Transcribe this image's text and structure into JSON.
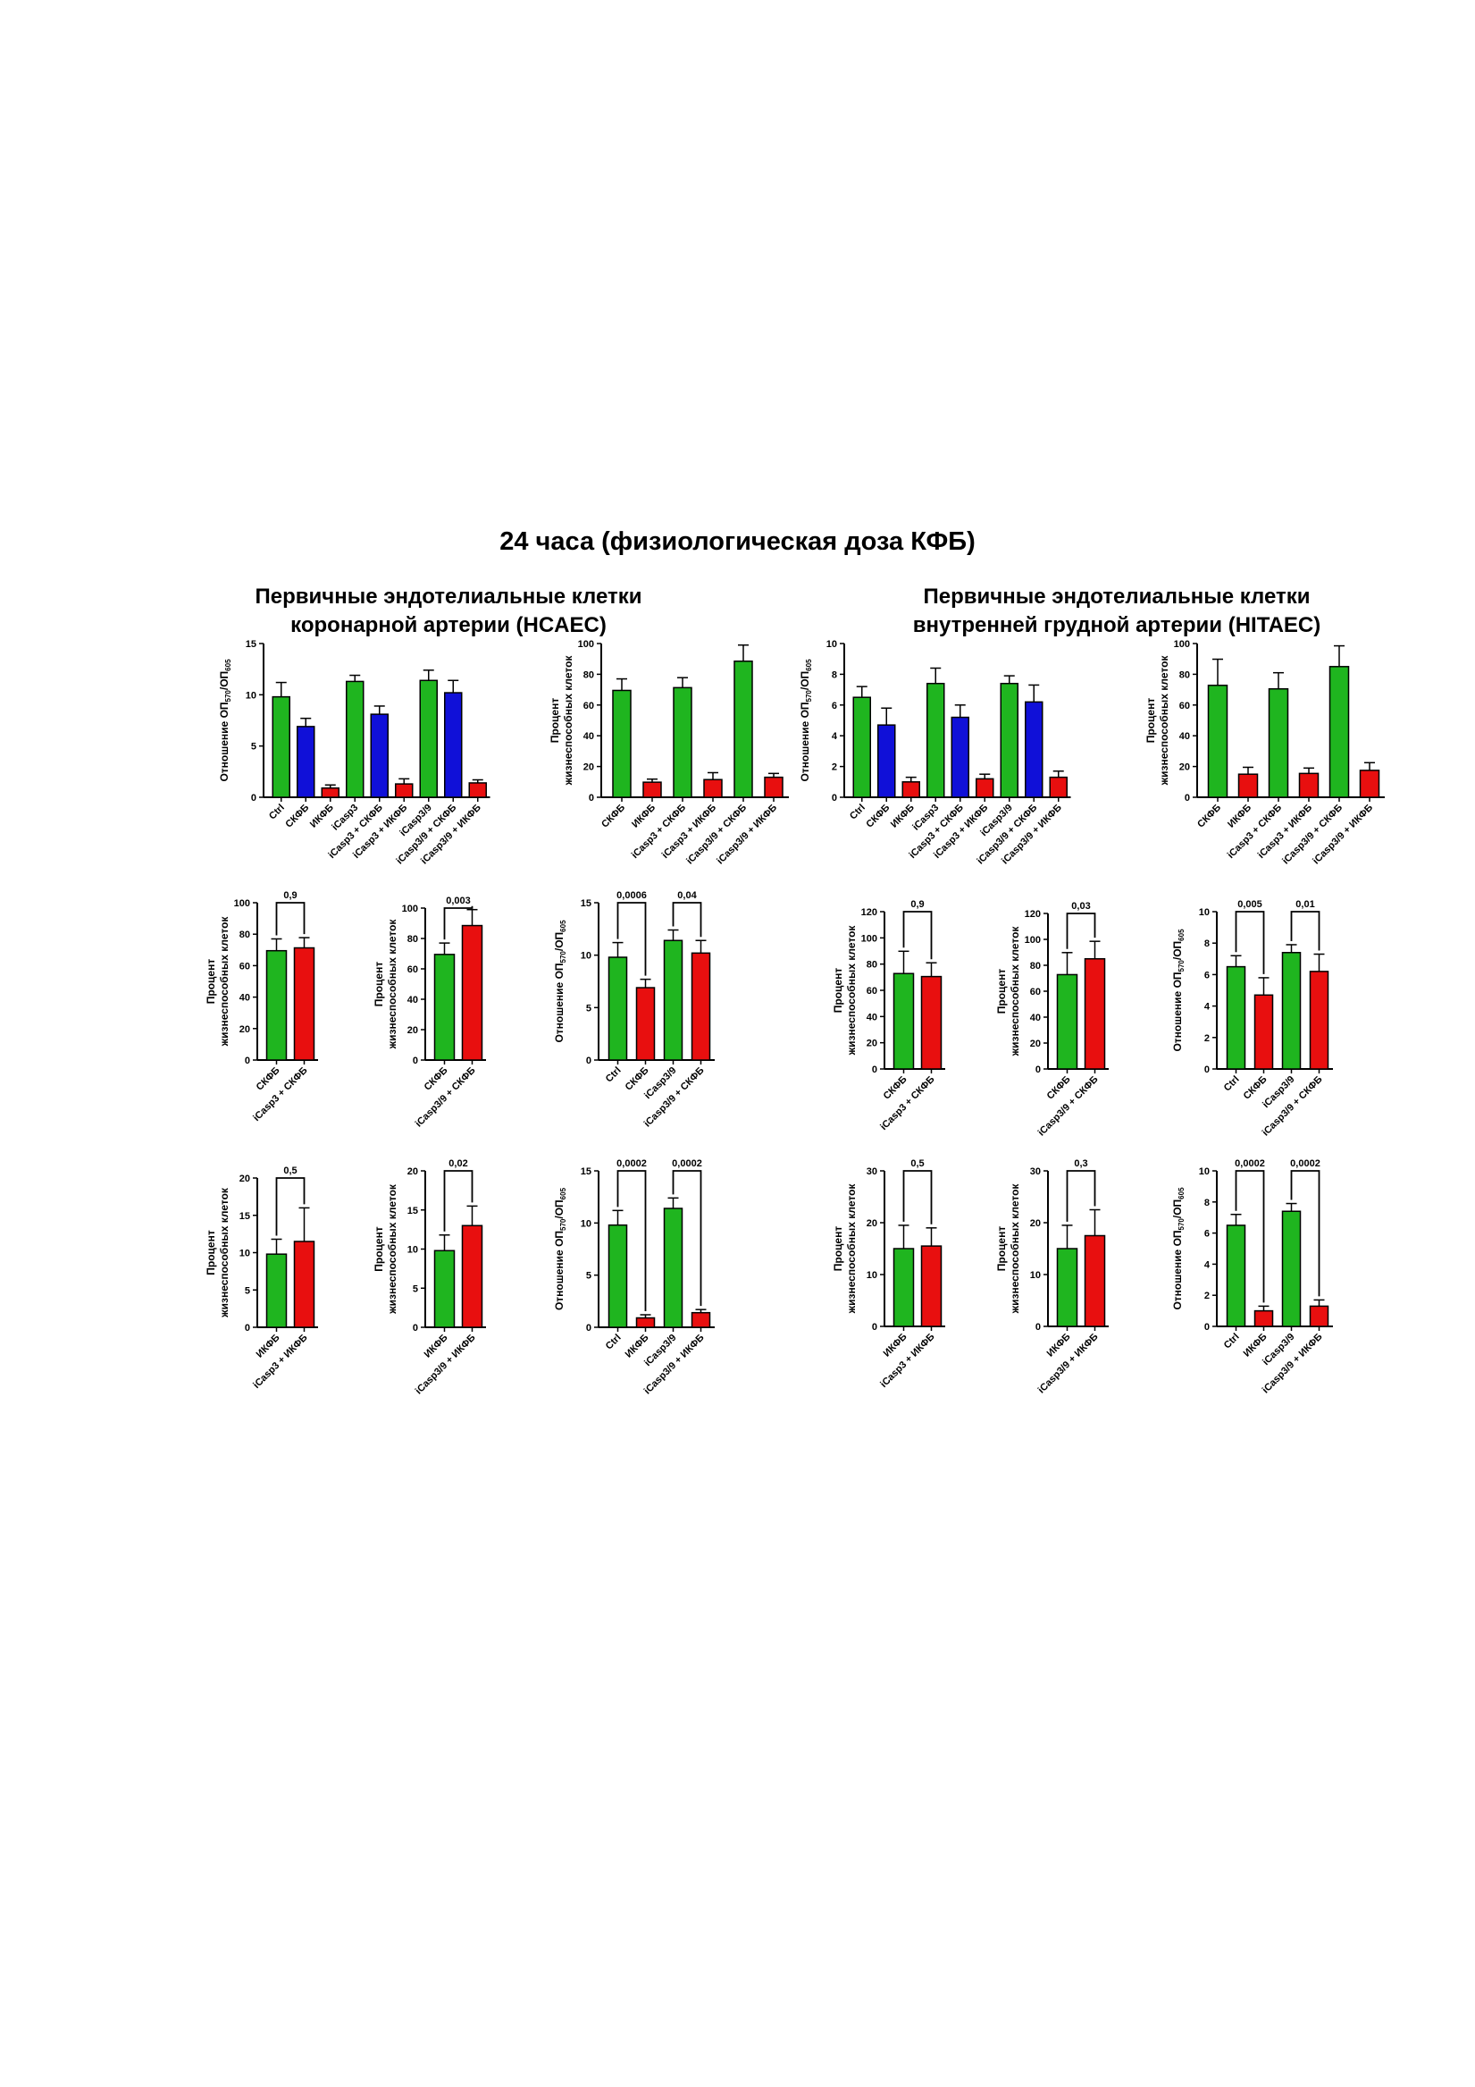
{
  "title": "24 часа (физиологическая доза КФБ)",
  "sections": [
    {
      "line1": "Первичные эндотелиальные клетки",
      "line2": "коронарной артерии (HCAEC)"
    },
    {
      "line1": "Первичные эндотелиальные клетки",
      "line2": "внутренней грудной артерии (HITAEC)"
    }
  ],
  "colors": {
    "green": "#1fb51f",
    "blue": "#1010d8",
    "red": "#e80f0f"
  },
  "chart_data": [
    {
      "id": "hcaec-od-all",
      "type": "bar",
      "ylabel_lines": [
        "Отношение ОП570/ОП605"
      ],
      "ylabel_sub": true,
      "ylim": [
        0,
        15
      ],
      "yticks": [
        0,
        5,
        10,
        15
      ],
      "categories": [
        "Ctrl",
        "СКФБ",
        "ИКФБ",
        "iCasp3",
        "iCasp3 + СКФБ",
        "iCasp3 + ИКФБ",
        "iCasp3/9",
        "iCasp3/9 + СКФБ",
        "iCasp3/9 + ИКФБ"
      ],
      "values": [
        9.8,
        6.9,
        0.9,
        11.3,
        8.1,
        1.3,
        11.4,
        10.2,
        1.4
      ],
      "errors": [
        1.4,
        0.8,
        0.3,
        0.6,
        0.8,
        0.5,
        1.0,
        1.2,
        0.3
      ],
      "colors": [
        "green",
        "blue",
        "red",
        "green",
        "blue",
        "red",
        "green",
        "blue",
        "red"
      ],
      "brackets": []
    },
    {
      "id": "hcaec-pct-all",
      "type": "bar",
      "ylabel_lines": [
        "Процент",
        "жизнеспособных клеток"
      ],
      "ylim": [
        0,
        100
      ],
      "yticks": [
        0,
        20,
        40,
        60,
        80,
        100
      ],
      "categories": [
        "СКФБ",
        "ИКФБ",
        "iCasp3 + СКФБ",
        "iCasp3 + ИКФБ",
        "iCasp3/9 + СКФБ",
        "iCasp3/9 + ИКФБ"
      ],
      "values": [
        69.5,
        9.8,
        71.3,
        11.5,
        88.5,
        13.0
      ],
      "errors": [
        7.5,
        2.0,
        6.5,
        4.5,
        10.5,
        2.5
      ],
      "colors": [
        "green",
        "red",
        "green",
        "red",
        "green",
        "red"
      ],
      "brackets": []
    },
    {
      "id": "hitaec-od-all",
      "type": "bar",
      "ylabel_lines": [
        "Отношение ОП570/ОП605"
      ],
      "ylabel_sub": true,
      "ylim": [
        0,
        10
      ],
      "yticks": [
        0,
        2,
        4,
        6,
        8,
        10
      ],
      "categories": [
        "Ctrl",
        "СКФБ",
        "ИКФБ",
        "iCasp3",
        "iCasp3 + СКФБ",
        "iCasp3 + ИКФБ",
        "iCasp3/9",
        "iCasp3/9 + СКФБ",
        "iCasp3/9 + ИКФБ"
      ],
      "values": [
        6.5,
        4.7,
        1.0,
        7.4,
        5.2,
        1.2,
        7.4,
        6.2,
        1.3
      ],
      "errors": [
        0.7,
        1.1,
        0.3,
        1.0,
        0.8,
        0.3,
        0.5,
        1.1,
        0.4
      ],
      "colors": [
        "green",
        "blue",
        "red",
        "green",
        "blue",
        "red",
        "green",
        "blue",
        "red"
      ],
      "brackets": []
    },
    {
      "id": "hitaec-pct-all",
      "type": "bar",
      "ylabel_lines": [
        "Процент",
        "жизнеспособных клеток"
      ],
      "ylim": [
        0,
        100
      ],
      "yticks": [
        0,
        20,
        40,
        60,
        80,
        100
      ],
      "categories": [
        "СКФБ",
        "ИКФБ",
        "iCasp3 + СКФБ",
        "iCasp3 + ИКФБ",
        "iCasp3/9 + СКФБ",
        "iCasp3/9 + ИКФБ"
      ],
      "values": [
        72.8,
        15.0,
        70.5,
        15.5,
        85.0,
        17.5
      ],
      "errors": [
        17.0,
        4.5,
        10.5,
        3.5,
        13.5,
        5.0
      ],
      "colors": [
        "green",
        "red",
        "green",
        "red",
        "green",
        "red"
      ],
      "brackets": []
    },
    {
      "id": "hcaec-pct-casp3-skfb",
      "type": "bar",
      "ylabel_lines": [
        "Процент",
        "жизнеспособных клеток"
      ],
      "ylim": [
        0,
        100
      ],
      "yticks": [
        0,
        20,
        40,
        60,
        80,
        100
      ],
      "categories": [
        "СКФБ",
        "iCasp3 + СКФБ"
      ],
      "values": [
        69.5,
        71.3
      ],
      "errors": [
        7.5,
        6.5
      ],
      "colors": [
        "green",
        "red"
      ],
      "brackets": [
        {
          "from": 0,
          "to": 1,
          "label": "0,9"
        }
      ]
    },
    {
      "id": "hcaec-pct-casp39-skfb",
      "type": "bar",
      "ylabel_lines": [
        "Процент",
        "жизнеспособных клеток"
      ],
      "ylim": [
        0,
        100
      ],
      "yticks": [
        0,
        20,
        40,
        60,
        80,
        100
      ],
      "categories": [
        "СКФБ",
        "iCasp3/9 + СКФБ"
      ],
      "values": [
        69.5,
        88.5
      ],
      "errors": [
        7.5,
        10.5
      ],
      "colors": [
        "green",
        "red"
      ],
      "brackets": [
        {
          "from": 0,
          "to": 1,
          "label": "0,003"
        }
      ]
    },
    {
      "id": "hcaec-od-skfb",
      "type": "bar",
      "ylabel_lines": [
        "Отношение ОП570/ОП605"
      ],
      "ylabel_sub": true,
      "ylim": [
        0,
        15
      ],
      "yticks": [
        0,
        5,
        10,
        15
      ],
      "categories": [
        "Ctrl",
        "СКФБ",
        "iCasp3/9",
        "iCasp3/9 + СКФБ"
      ],
      "values": [
        9.8,
        6.9,
        11.4,
        10.2
      ],
      "errors": [
        1.4,
        0.8,
        1.0,
        1.2
      ],
      "colors": [
        "green",
        "red",
        "green",
        "red"
      ],
      "brackets": [
        {
          "from": 0,
          "to": 1,
          "label": "0,0006"
        },
        {
          "from": 2,
          "to": 3,
          "label": "0,04"
        }
      ]
    },
    {
      "id": "hitaec-pct-casp3-skfb",
      "type": "bar",
      "ylabel_lines": [
        "Процент",
        "жизнеспособных клеток"
      ],
      "ylim": [
        0,
        120
      ],
      "yticks": [
        0,
        20,
        40,
        60,
        80,
        100,
        120
      ],
      "categories": [
        "СКФБ",
        "iCasp3 + СКФБ"
      ],
      "values": [
        72.8,
        70.5
      ],
      "errors": [
        17.0,
        10.5
      ],
      "colors": [
        "green",
        "red"
      ],
      "brackets": [
        {
          "from": 0,
          "to": 1,
          "label": "0,9"
        }
      ]
    },
    {
      "id": "hitaec-pct-casp39-skfb",
      "type": "bar",
      "ylabel_lines": [
        "Процент",
        "жизнеспособных клеток"
      ],
      "ylim": [
        0,
        120
      ],
      "yticks": [
        0,
        20,
        40,
        60,
        80,
        100,
        120
      ],
      "categories": [
        "СКФБ",
        "iCasp3/9 + СКФБ"
      ],
      "values": [
        72.8,
        85.0
      ],
      "errors": [
        17.0,
        13.5
      ],
      "colors": [
        "green",
        "red"
      ],
      "brackets": [
        {
          "from": 0,
          "to": 1,
          "label": "0,03"
        }
      ]
    },
    {
      "id": "hitaec-od-skfb",
      "type": "bar",
      "ylabel_lines": [
        "Отношение ОП570/ОП605"
      ],
      "ylabel_sub": true,
      "ylim": [
        0,
        10
      ],
      "yticks": [
        0,
        2,
        4,
        6,
        8,
        10
      ],
      "categories": [
        "Ctrl",
        "СКФБ",
        "iCasp3/9",
        "iCasp3/9 + СКФБ"
      ],
      "values": [
        6.5,
        4.7,
        7.4,
        6.2
      ],
      "errors": [
        0.7,
        1.1,
        0.5,
        1.1
      ],
      "colors": [
        "green",
        "red",
        "green",
        "red"
      ],
      "brackets": [
        {
          "from": 0,
          "to": 1,
          "label": "0,005"
        },
        {
          "from": 2,
          "to": 3,
          "label": "0,01"
        }
      ]
    },
    {
      "id": "hcaec-pct-casp3-ikfb",
      "type": "bar",
      "ylabel_lines": [
        "Процент",
        "жизнеспособных клеток"
      ],
      "ylim": [
        0,
        20
      ],
      "yticks": [
        0,
        5,
        10,
        15,
        20
      ],
      "categories": [
        "ИКФБ",
        "iCasp3 + ИКФБ"
      ],
      "values": [
        9.8,
        11.5
      ],
      "errors": [
        2.0,
        4.5
      ],
      "colors": [
        "green",
        "red"
      ],
      "brackets": [
        {
          "from": 0,
          "to": 1,
          "label": "0,5"
        }
      ]
    },
    {
      "id": "hcaec-pct-casp39-ikfb",
      "type": "bar",
      "ylabel_lines": [
        "Процент",
        "жизнеспособных клеток"
      ],
      "ylim": [
        0,
        20
      ],
      "yticks": [
        0,
        5,
        10,
        15,
        20
      ],
      "categories": [
        "ИКФБ",
        "iCasp3/9 + ИКФБ"
      ],
      "values": [
        9.8,
        13.0
      ],
      "errors": [
        2.0,
        2.5
      ],
      "colors": [
        "green",
        "red"
      ],
      "brackets": [
        {
          "from": 0,
          "to": 1,
          "label": "0,02"
        }
      ]
    },
    {
      "id": "hcaec-od-ikfb",
      "type": "bar",
      "ylabel_lines": [
        "Отношение ОП570/ОП605"
      ],
      "ylabel_sub": true,
      "ylim": [
        0,
        15
      ],
      "yticks": [
        0,
        5,
        10,
        15
      ],
      "categories": [
        "Ctrl",
        "ИКФБ",
        "iCasp3/9",
        "iCasp3/9 + ИКФБ"
      ],
      "values": [
        9.8,
        0.9,
        11.4,
        1.4
      ],
      "errors": [
        1.4,
        0.3,
        1.0,
        0.3
      ],
      "colors": [
        "green",
        "red",
        "green",
        "red"
      ],
      "brackets": [
        {
          "from": 0,
          "to": 1,
          "label": "0,0002"
        },
        {
          "from": 2,
          "to": 3,
          "label": "0,0002"
        }
      ]
    },
    {
      "id": "hitaec-pct-casp3-ikfb",
      "type": "bar",
      "ylabel_lines": [
        "Процент",
        "жизнеспособных клеток"
      ],
      "ylim": [
        0,
        30
      ],
      "yticks": [
        0,
        10,
        20,
        30
      ],
      "categories": [
        "ИКФБ",
        "iCasp3 + ИКФБ"
      ],
      "values": [
        15.0,
        15.5
      ],
      "errors": [
        4.5,
        3.5
      ],
      "colors": [
        "green",
        "red"
      ],
      "brackets": [
        {
          "from": 0,
          "to": 1,
          "label": "0,5"
        }
      ]
    },
    {
      "id": "hitaec-pct-casp39-ikfb",
      "type": "bar",
      "ylabel_lines": [
        "Процент",
        "жизнеспособных клеток"
      ],
      "ylim": [
        0,
        30
      ],
      "yticks": [
        0,
        10,
        20,
        30
      ],
      "categories": [
        "ИКФБ",
        "iCasp3/9 + ИКФБ"
      ],
      "values": [
        15.0,
        17.5
      ],
      "errors": [
        4.5,
        5.0
      ],
      "colors": [
        "green",
        "red"
      ],
      "brackets": [
        {
          "from": 0,
          "to": 1,
          "label": "0,3"
        }
      ]
    },
    {
      "id": "hitaec-od-ikfb",
      "type": "bar",
      "ylabel_lines": [
        "Отношение ОП570/ОП605"
      ],
      "ylabel_sub": true,
      "ylim": [
        0,
        10
      ],
      "yticks": [
        0,
        2,
        4,
        6,
        8,
        10
      ],
      "categories": [
        "Ctrl",
        "ИКФБ",
        "iCasp3/9",
        "iCasp3/9 + ИКФБ"
      ],
      "values": [
        6.5,
        1.0,
        7.4,
        1.3
      ],
      "errors": [
        0.7,
        0.3,
        0.5,
        0.4
      ],
      "colors": [
        "green",
        "red",
        "green",
        "red"
      ],
      "brackets": [
        {
          "from": 0,
          "to": 1,
          "label": "0,0002"
        },
        {
          "from": 2,
          "to": 3,
          "label": "0,0002"
        }
      ]
    }
  ]
}
